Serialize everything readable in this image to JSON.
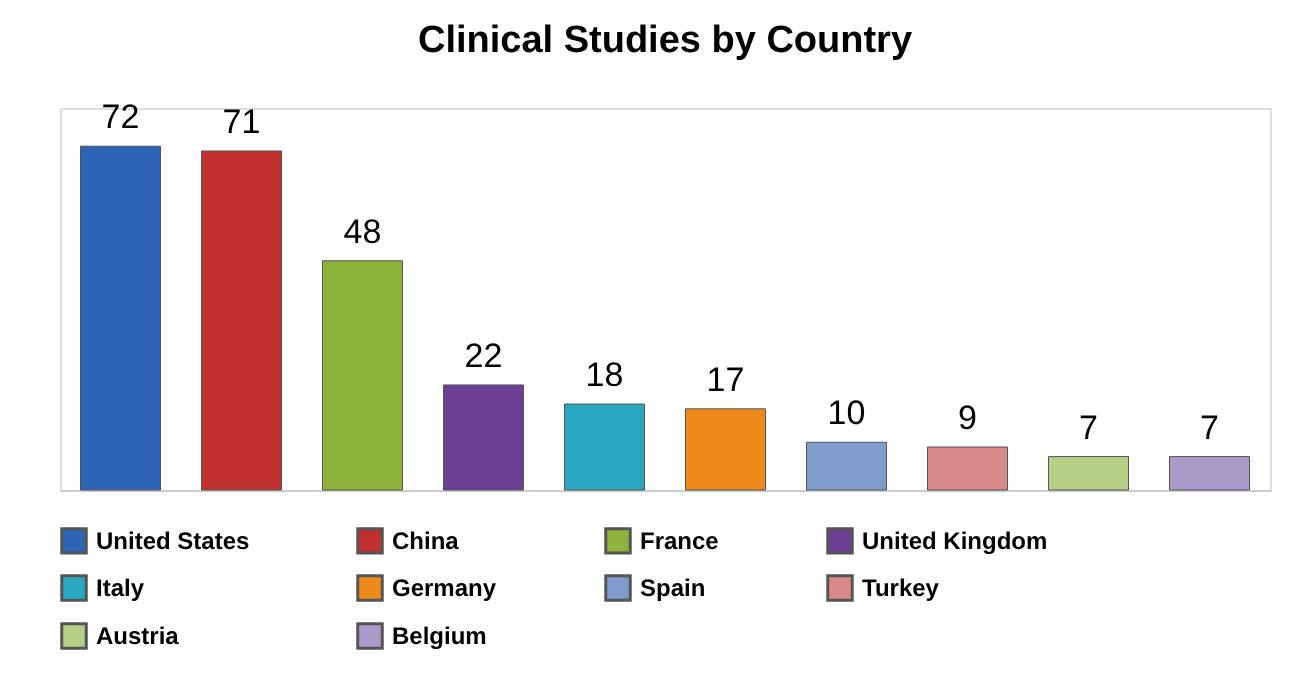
{
  "chart_data": {
    "type": "bar",
    "title": "Clinical Studies by Country",
    "stacked": true,
    "categories": [
      null,
      null,
      null,
      null,
      null,
      null,
      null,
      null,
      null,
      null
    ],
    "series": [
      {
        "name": "United States",
        "color": "#2e64b5",
        "values": [
          72,
          0,
          0,
          0,
          0,
          0,
          0,
          0,
          0,
          0
        ],
        "value_labels": [
          "72",
          null,
          null,
          null,
          null,
          null,
          null,
          null,
          null,
          null
        ]
      },
      {
        "name": "China",
        "color": "#c0302e",
        "values": [
          0,
          71,
          0,
          0,
          0,
          0,
          0,
          0,
          0,
          0
        ],
        "value_labels": [
          null,
          "71",
          null,
          null,
          null,
          null,
          null,
          null,
          null,
          null
        ]
      },
      {
        "name": "France",
        "color": "#8db33a",
        "values": [
          0,
          0,
          48,
          0,
          0,
          0,
          0,
          0,
          0,
          0
        ],
        "value_labels": [
          null,
          null,
          "48",
          null,
          null,
          null,
          null,
          null,
          null,
          null
        ]
      },
      {
        "name": "United Kingdom",
        "color": "#6b3f94",
        "values": [
          0,
          0,
          0,
          22,
          0,
          0,
          0,
          0,
          0,
          0
        ],
        "value_labels": [
          null,
          null,
          null,
          "22",
          null,
          null,
          null,
          null,
          null,
          null
        ]
      },
      {
        "name": "Italy",
        "color": "#2aa7c0",
        "values": [
          0,
          0,
          0,
          0,
          18,
          0,
          0,
          0,
          0,
          0
        ],
        "value_labels": [
          null,
          null,
          null,
          null,
          "18",
          null,
          null,
          null,
          null,
          null
        ]
      },
      {
        "name": "Germany",
        "color": "#ee8a1c",
        "values": [
          0,
          0,
          0,
          0,
          0,
          17,
          0,
          0,
          0,
          0
        ],
        "value_labels": [
          null,
          null,
          null,
          null,
          null,
          "17",
          null,
          null,
          null,
          null
        ]
      },
      {
        "name": "Spain",
        "color": "#7f9ccc",
        "values": [
          0,
          0,
          0,
          0,
          0,
          0,
          10,
          0,
          0,
          0
        ],
        "value_labels": [
          null,
          null,
          null,
          null,
          null,
          null,
          "10",
          null,
          null,
          null
        ]
      },
      {
        "name": "Turkey",
        "color": "#d98a8a",
        "values": [
          0,
          0,
          0,
          0,
          0,
          0,
          0,
          9,
          0,
          0
        ],
        "value_labels": [
          null,
          null,
          null,
          null,
          null,
          null,
          null,
          "9",
          null,
          null
        ]
      },
      {
        "name": "Austria",
        "color": "#b6cf86",
        "values": [
          0,
          0,
          0,
          0,
          0,
          0,
          0,
          0,
          7,
          0
        ],
        "value_labels": [
          null,
          null,
          null,
          null,
          null,
          null,
          null,
          null,
          "7",
          null
        ]
      },
      {
        "name": "Belgium",
        "color": "#a99bc9",
        "values": [
          0,
          0,
          0,
          0,
          0,
          0,
          0,
          0,
          0,
          7
        ],
        "value_labels": [
          null,
          null,
          null,
          null,
          null,
          null,
          null,
          null,
          null,
          "7"
        ]
      }
    ],
    "legend": "bottom",
    "tick_labels": false,
    "grid": false
  }
}
